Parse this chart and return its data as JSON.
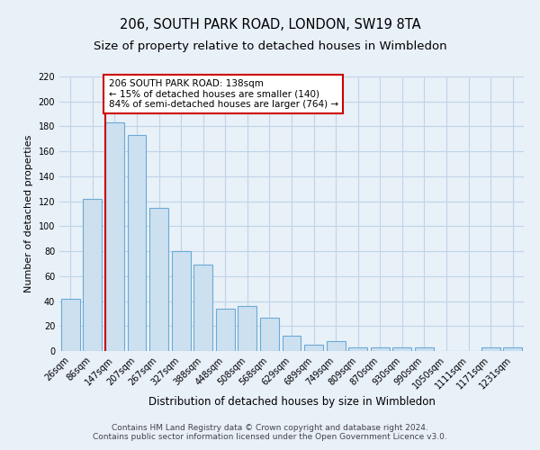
{
  "title": "206, SOUTH PARK ROAD, LONDON, SW19 8TA",
  "subtitle": "Size of property relative to detached houses in Wimbledon",
  "xlabel": "Distribution of detached houses by size in Wimbledon",
  "ylabel": "Number of detached properties",
  "categories": [
    "26sqm",
    "86sqm",
    "147sqm",
    "207sqm",
    "267sqm",
    "327sqm",
    "388sqm",
    "448sqm",
    "508sqm",
    "568sqm",
    "629sqm",
    "689sqm",
    "749sqm",
    "809sqm",
    "870sqm",
    "930sqm",
    "990sqm",
    "1050sqm",
    "1111sqm",
    "1171sqm",
    "1231sqm"
  ],
  "values": [
    42,
    122,
    183,
    173,
    115,
    80,
    69,
    34,
    36,
    27,
    12,
    5,
    8,
    3,
    3,
    3,
    3,
    0,
    0,
    3,
    3
  ],
  "bar_color": "#cde0f0",
  "bar_edge_color": "#6aaad4",
  "grid_color": "#c0d4e8",
  "background_color": "#e8f0f8",
  "vline_index": 2,
  "vline_color": "#cc0000",
  "annotation_line1": "206 SOUTH PARK ROAD: 138sqm",
  "annotation_line2": "← 15% of detached houses are smaller (140)",
  "annotation_line3": "84% of semi-detached houses are larger (764) →",
  "annotation_box_facecolor": "#ffffff",
  "annotation_box_edgecolor": "#cc0000",
  "footer_text": "Contains HM Land Registry data © Crown copyright and database right 2024.\nContains public sector information licensed under the Open Government Licence v3.0.",
  "ylim": [
    0,
    220
  ],
  "yticks": [
    0,
    20,
    40,
    60,
    80,
    100,
    120,
    140,
    160,
    180,
    200,
    220
  ],
  "title_fontsize": 10.5,
  "subtitle_fontsize": 9.5,
  "xlabel_fontsize": 8.5,
  "ylabel_fontsize": 8,
  "tick_fontsize": 7,
  "annotation_fontsize": 7.5,
  "footer_fontsize": 6.5
}
